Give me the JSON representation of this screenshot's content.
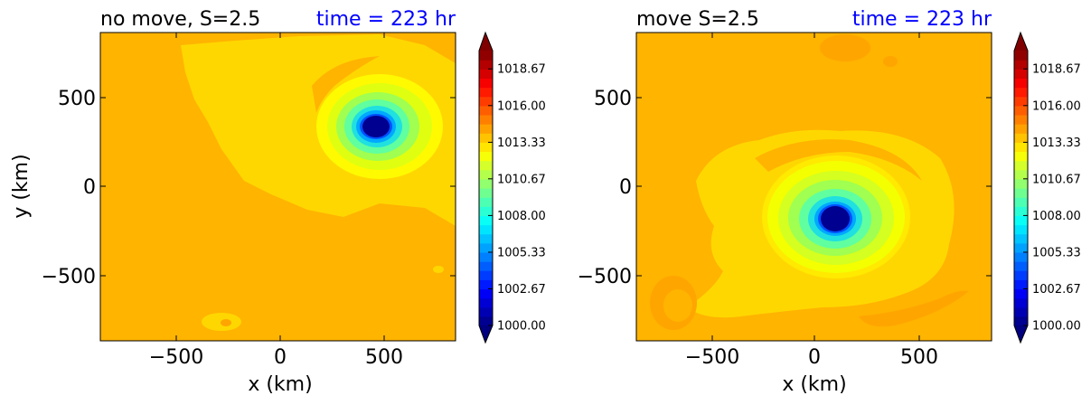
{
  "chart_data": [
    {
      "type": "heatmap",
      "title": "no move, S=2.5",
      "time_label": "time = 223 hr",
      "xlabel": "x (km)",
      "ylabel": "y (km)",
      "xlim": [
        -850,
        850
      ],
      "ylim": [
        -850,
        850
      ],
      "xticks": [
        -500,
        0,
        500
      ],
      "yticks": [
        500,
        0,
        -500
      ],
      "xtick_labels": [
        "−500",
        "0",
        "500"
      ],
      "ytick_labels": [
        "500",
        "0",
        "−500"
      ],
      "field": "pressure",
      "vortex_center_km": [
        480,
        330
      ],
      "min_value": 1000.0,
      "colorbar": {
        "min": 1000.0,
        "max": 1020.0,
        "extend": "both",
        "tick_values": [
          1000.0,
          1002.67,
          1005.33,
          1008.0,
          1010.67,
          1013.33,
          1016.0,
          1018.67
        ],
        "tick_labels": [
          "1000.00",
          "1002.67",
          "1005.33",
          "1008.00",
          "1010.67",
          "1013.33",
          "1016.00",
          "1018.67"
        ]
      }
    },
    {
      "type": "heatmap",
      "title": "move S=2.5",
      "time_label": "time = 223 hr",
      "xlabel": "x (km)",
      "ylabel": "",
      "xlim": [
        -850,
        850
      ],
      "ylim": [
        -850,
        850
      ],
      "xticks": [
        -500,
        0,
        500
      ],
      "yticks": [
        500,
        0,
        -500
      ],
      "xtick_labels": [
        "−500",
        "0",
        "500"
      ],
      "ytick_labels": [
        "500",
        "0",
        "−500"
      ],
      "field": "pressure",
      "vortex_center_km": [
        100,
        -175
      ],
      "min_value": 1000.0,
      "colorbar": {
        "min": 1000.0,
        "max": 1020.0,
        "extend": "both",
        "tick_values": [
          1000.0,
          1002.67,
          1005.33,
          1008.0,
          1010.67,
          1013.33,
          1016.0,
          1018.67
        ],
        "tick_labels": [
          "1000.00",
          "1002.67",
          "1005.33",
          "1008.00",
          "1010.67",
          "1013.33",
          "1016.00",
          "1018.67"
        ]
      }
    }
  ],
  "colors": {
    "background_field": "#ffb400",
    "ring_yellow": "#ffd700",
    "vortex_core": "#000080",
    "title_time": "#0000ff"
  }
}
